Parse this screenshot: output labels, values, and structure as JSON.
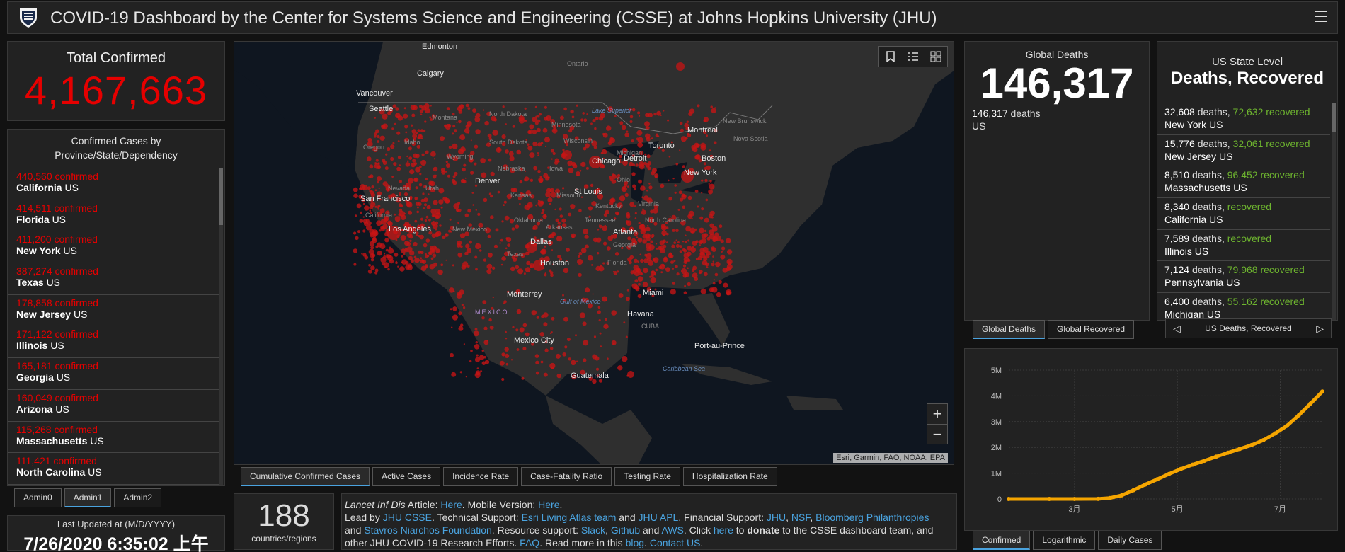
{
  "header": {
    "title": "COVID-19 Dashboard by the Center for Systems Science and Engineering (CSSE) at Johns Hopkins University (JHU)"
  },
  "total_confirmed": {
    "label": "Total Confirmed",
    "value": "4,167,663"
  },
  "confirmed_list": {
    "title_line1": "Confirmed Cases by",
    "title_line2": "Province/State/Dependency",
    "confirmed_suffix": "confirmed",
    "items": [
      {
        "count": "440,560",
        "name": "California",
        "country": "US"
      },
      {
        "count": "414,511",
        "name": "Florida",
        "country": "US"
      },
      {
        "count": "411,200",
        "name": "New York",
        "country": "US"
      },
      {
        "count": "387,274",
        "name": "Texas",
        "country": "US"
      },
      {
        "count": "178,858",
        "name": "New Jersey",
        "country": "US"
      },
      {
        "count": "171,122",
        "name": "Illinois",
        "country": "US"
      },
      {
        "count": "165,181",
        "name": "Georgia",
        "country": "US"
      },
      {
        "count": "160,049",
        "name": "Arizona",
        "country": "US"
      },
      {
        "count": "115,268",
        "name": "Massachusetts",
        "country": "US"
      },
      {
        "count": "111,421",
        "name": "North Carolina",
        "country": "US"
      }
    ]
  },
  "admin_tabs": [
    "Admin0",
    "Admin1",
    "Admin2"
  ],
  "admin_tab_active": 1,
  "last_updated": {
    "label": "Last Updated at (M/D/YYYY)",
    "value": "7/26/2020 6:35:02 上午"
  },
  "map": {
    "attribution": "Esri, Garmin, FAO, NOAA, EPA",
    "zoom_in": "+",
    "zoom_out": "−",
    "labels": [
      "Edmonton",
      "Calgary",
      "Vancouver",
      "Seattle",
      "Ontario",
      "Montana",
      "North Dakota",
      "Minnesota",
      "Lake Superior",
      "Montreal",
      "New Brunswick",
      "Nova Scotia",
      "Toronto",
      "Boston",
      "Oregon",
      "Idaho",
      "South Dakota",
      "Wisconsin",
      "Michigan",
      "Wyoming",
      "New York",
      "Chicago",
      "Detroit",
      "Nebraska",
      "Iowa",
      "Nevada",
      "Utah",
      "Denver",
      "San Francisco",
      "Kansas",
      "Missouri",
      "St Louis",
      "Ohio",
      "Virginia",
      "California",
      "Kentucky",
      "Tennessee",
      "North Carolina",
      "Los Angeles",
      "Oklahoma",
      "Arkansas",
      "Atlanta",
      "Georgia",
      "New Mexico",
      "Dallas",
      "Texas",
      "Houston",
      "Florida",
      "Miami",
      "Monterrey",
      "Gulf of Mexico",
      "MÉXICO",
      "Havana",
      "CUBA",
      "Mexico City",
      "Port-au-Prince",
      "Caribbean Sea",
      "Guatemala"
    ]
  },
  "map_tabs": [
    "Cumulative Confirmed Cases",
    "Active Cases",
    "Incidence Rate",
    "Case-Fatality Ratio",
    "Testing Rate",
    "Hospitalization Rate"
  ],
  "map_tab_active": 0,
  "countries": {
    "value": "188",
    "label": "countries/regions"
  },
  "info": {
    "article_prefix": "Lancet Inf Dis",
    "t1": " Article: ",
    "link_here1": "Here",
    "t2": ". Mobile Version: ",
    "link_here2": "Here",
    "t3": ".",
    "t4": "Lead by ",
    "link_jhu_csse": "JHU CSSE",
    "t5": ". Technical Support: ",
    "link_esri": "Esri Living Atlas team",
    "t6": " and ",
    "link_jhu_apl": "JHU APL",
    "t7": ". Financial Support: ",
    "link_jhu": "JHU",
    "t8": ", ",
    "link_nsf": "NSF",
    "t9": ", ",
    "link_bloomberg": "Bloomberg Philanthropies",
    "t10": "and ",
    "link_stavros": "Stavros Niarchos Foundation",
    "t11": ". Resource support: ",
    "link_slack": "Slack",
    "t12": ", ",
    "link_github": "Github",
    "t13": " and ",
    "link_aws": "AWS",
    "t14": ". Click ",
    "link_here3": "here",
    "t15": " to ",
    "donate": "donate",
    "t16": " to the CSSE dashboard team, and",
    "t17": "other JHU COVID-19 Research Efforts. ",
    "link_faq": "FAQ",
    "t18": ". Read more in this ",
    "link_blog": "blog",
    "t19": ". ",
    "link_contact": "Contact US",
    "t20": "."
  },
  "global_deaths": {
    "title": "Global Deaths",
    "value": "146,317",
    "sub_count": "146,317",
    "sub_word": "deaths",
    "sub_place": "US"
  },
  "deaths_tabs": [
    "Global Deaths",
    "Global Recovered"
  ],
  "deaths_tab_active": 0,
  "state_level": {
    "title1": "US State Level",
    "title2": "Deaths, Recovered",
    "deaths_word": "deaths,",
    "recovered_word": "recovered",
    "items": [
      {
        "deaths": "32,608",
        "recovered": "72,632",
        "name": "New York",
        "country": "US"
      },
      {
        "deaths": "15,776",
        "recovered": "32,061",
        "name": "New Jersey",
        "country": "US"
      },
      {
        "deaths": "8,510",
        "recovered": "96,452",
        "name": "Massachusetts",
        "country": "US"
      },
      {
        "deaths": "8,340",
        "recovered": "",
        "name": "California",
        "country": "US"
      },
      {
        "deaths": "7,589",
        "recovered": "",
        "name": "Illinois",
        "country": "US"
      },
      {
        "deaths": "7,124",
        "recovered": "79,968",
        "name": "Pennsylvania",
        "country": "US"
      },
      {
        "deaths": "6,400",
        "recovered": "55,162",
        "name": "Michigan",
        "country": "US"
      }
    ]
  },
  "pager": {
    "label": "US Deaths, Recovered"
  },
  "chart_tabs": [
    "Confirmed",
    "Logarithmic",
    "Daily Cases"
  ],
  "chart_tab_active": 0,
  "colors": {
    "confirmed_red": "#e60000",
    "recovered_green": "#6eb52f",
    "chart_line": "#f5a500",
    "link_blue": "#4aa3df"
  },
  "chart_data": {
    "type": "line",
    "title": "",
    "xlabel": "",
    "ylabel": "",
    "x_tick_labels": [
      "3月",
      "5月",
      "7月"
    ],
    "y_tick_labels": [
      "0",
      "1M",
      "2M",
      "3M",
      "4M",
      "5M"
    ],
    "ylim": [
      0,
      5000000
    ],
    "xlim": [
      "2020-01-22",
      "2020-07-26"
    ],
    "x_ticks": [
      "2020-03-01",
      "2020-05-01",
      "2020-07-01"
    ],
    "series": [
      {
        "name": "",
        "x": [
          "2020-01-22",
          "2020-02-15",
          "2020-03-01",
          "2020-03-15",
          "2020-03-22",
          "2020-03-29",
          "2020-04-05",
          "2020-04-12",
          "2020-04-19",
          "2020-04-26",
          "2020-05-03",
          "2020-05-10",
          "2020-05-17",
          "2020-05-24",
          "2020-05-31",
          "2020-06-07",
          "2020-06-14",
          "2020-06-21",
          "2020-06-28",
          "2020-07-05",
          "2020-07-12",
          "2020-07-19",
          "2020-07-26"
        ],
        "y": [
          0,
          15,
          75,
          3500,
          35000,
          140000,
          340000,
          560000,
          760000,
          970000,
          1160000,
          1330000,
          1480000,
          1640000,
          1790000,
          1940000,
          2090000,
          2280000,
          2540000,
          2840000,
          3250000,
          3700000,
          4167663
        ]
      }
    ]
  }
}
